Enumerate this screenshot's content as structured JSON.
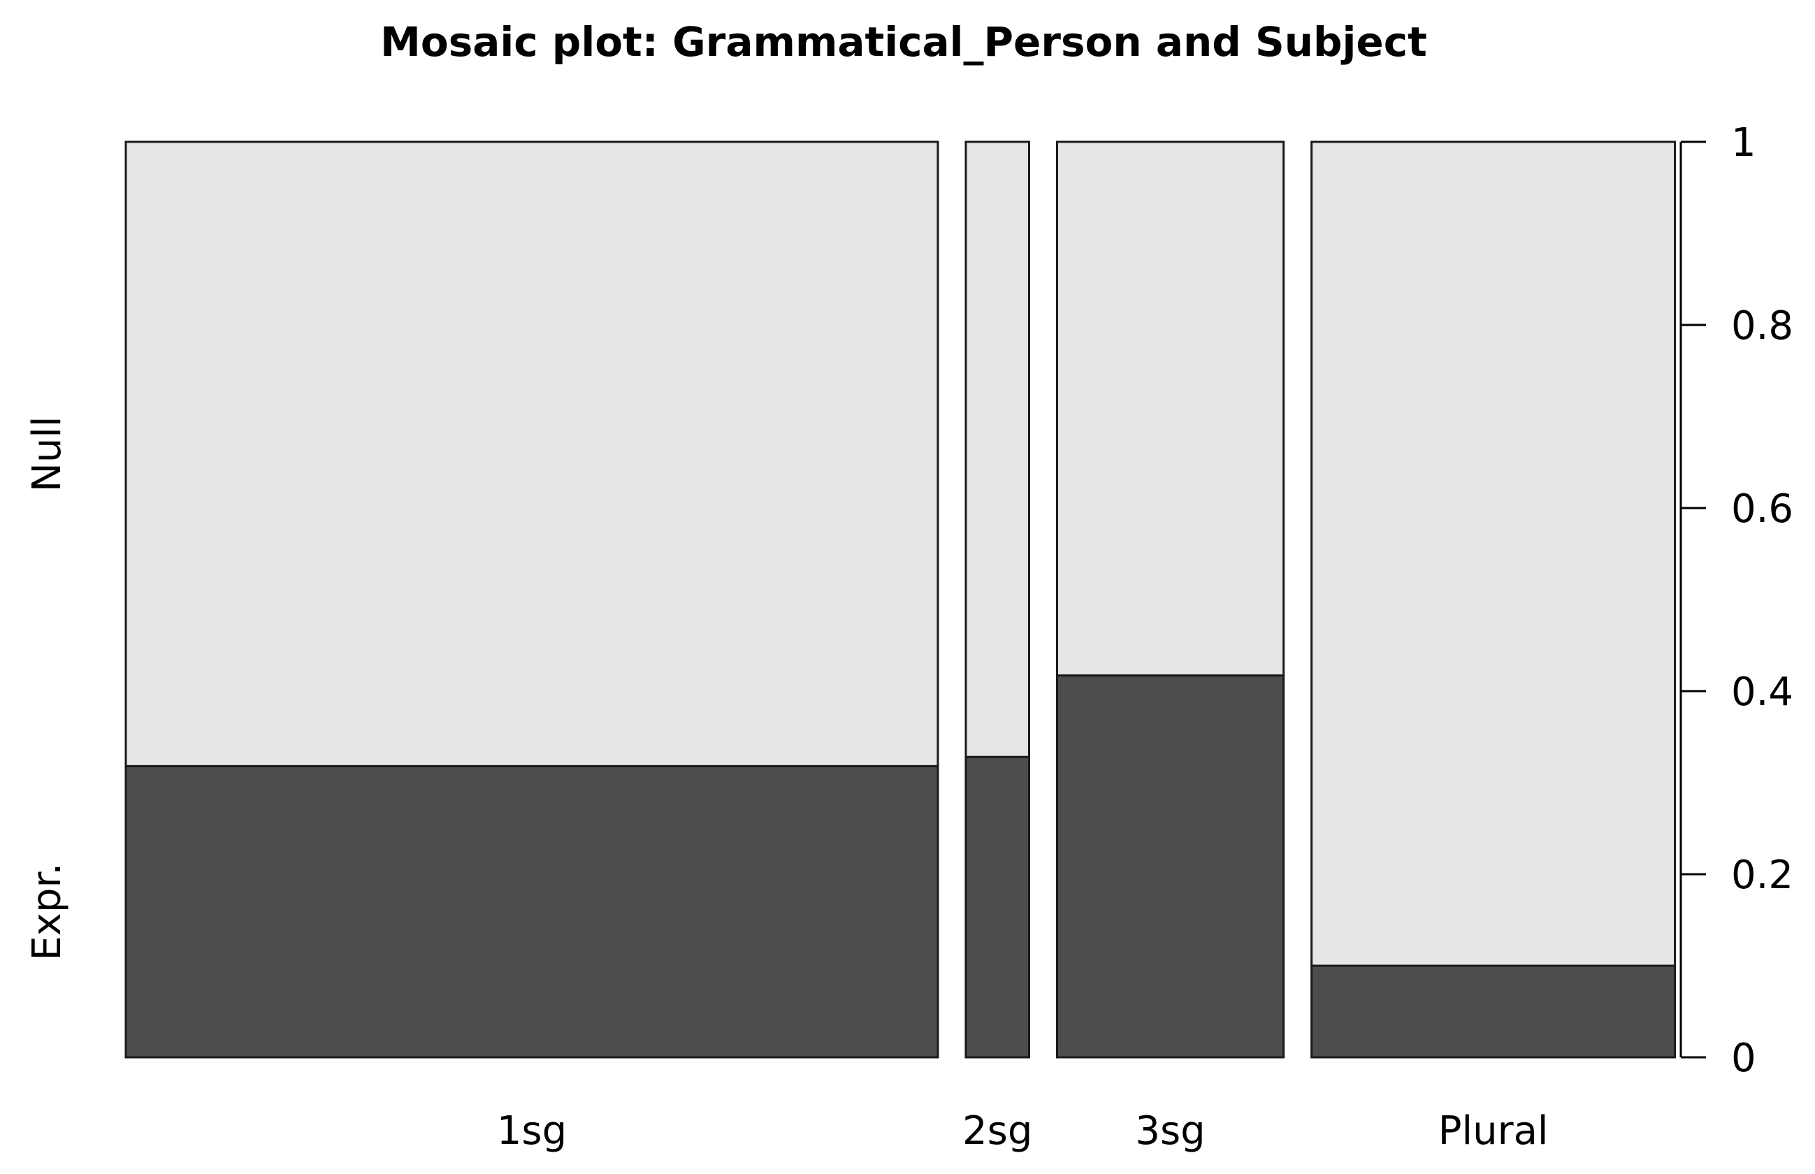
{
  "chart_data": {
    "type": "mosaic",
    "title": "Mosaic plot: Grammatical_Person and Subject",
    "categories": [
      "1sg",
      "2sg",
      "3sg",
      "Plural"
    ],
    "category_widths": [
      0.552,
      0.043,
      0.154,
      0.247
    ],
    "levels": [
      "Expr.",
      "Null"
    ],
    "level_colors": {
      "Expr.": "#4d4d4d",
      "Null": "#e6e6e6"
    },
    "expr_proportion": [
      0.318,
      0.328,
      0.417,
      0.1
    ],
    "yticks": [
      "0",
      "0.2",
      "0.4",
      "0.6",
      "0.8",
      "1"
    ],
    "ylim": [
      0,
      1
    ],
    "axis_side": "right",
    "grid": false
  }
}
